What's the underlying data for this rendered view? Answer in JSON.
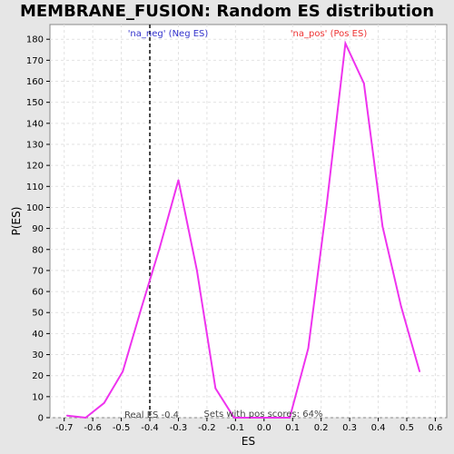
{
  "chart_data": {
    "type": "line",
    "title": "MEMBRANE_FUSION: Random ES distribution",
    "xlabel": "ES",
    "ylabel": "P(ES)",
    "xlim": [
      -0.75,
      0.64
    ],
    "ylim": [
      0,
      187
    ],
    "xticks": [
      -0.7,
      -0.6,
      -0.5,
      -0.4,
      -0.3,
      -0.2,
      -0.1,
      0.0,
      0.1,
      0.2,
      0.3,
      0.4,
      0.5,
      0.6
    ],
    "xtick_labels": [
      "-0.7",
      "-0.6",
      "-0.5",
      "-0.4",
      "-0.3",
      "-0.2",
      "-0.1",
      "0.0",
      "0.1",
      "0.2",
      "0.3",
      "0.4",
      "0.5",
      "0.6"
    ],
    "yticks": [
      0,
      10,
      20,
      30,
      40,
      50,
      60,
      70,
      80,
      90,
      100,
      110,
      120,
      130,
      140,
      150,
      160,
      170,
      180
    ],
    "ytick_labels": [
      "0",
      "10",
      "20",
      "30",
      "40",
      "50",
      "60",
      "70",
      "80",
      "90",
      "100",
      "110",
      "120",
      "130",
      "140",
      "150",
      "160",
      "170",
      "180"
    ],
    "grid": true,
    "series": [
      {
        "color": "#ee33ee",
        "x": [
          -0.69,
          -0.625,
          -0.56,
          -0.495,
          -0.43,
          -0.365,
          -0.3,
          -0.235,
          -0.17,
          -0.105,
          -0.04,
          0.025,
          0.09,
          0.155,
          0.22,
          0.285,
          0.35,
          0.415,
          0.48,
          0.545
        ],
        "y": [
          1,
          0,
          7,
          22,
          52,
          81,
          113,
          70,
          14,
          0,
          0,
          0,
          0,
          33,
          102,
          178,
          159,
          91,
          53,
          22
        ]
      }
    ],
    "vline": {
      "x": -0.4,
      "color": "#444444"
    },
    "annotations": {
      "neg_label": "'na_neg' (Neg ES)",
      "pos_label": "'na_pos' (Pos ES)",
      "real_es": "Real ES -0.4",
      "pos_scores": "Sets with pos scores: 64%"
    },
    "colors": {
      "neg_label": "#3333cc",
      "pos_label": "#ee3333",
      "background": "#ffffff",
      "page": "#e6e6e6",
      "grid": "#e2e2e2"
    }
  }
}
